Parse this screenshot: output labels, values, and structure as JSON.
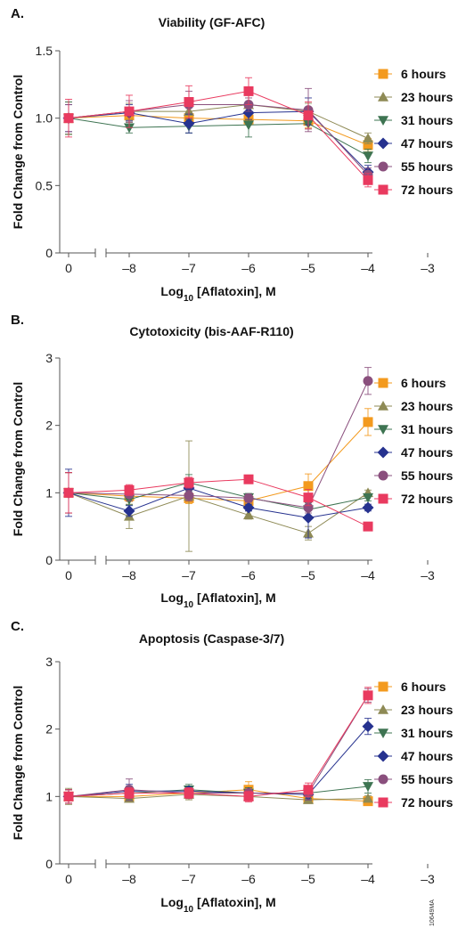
{
  "footnote": "10649MA",
  "colors": {
    "6 hours": "#f39a1e",
    "23 hours": "#8e8a55",
    "31 hours": "#3e7452",
    "47 hours": "#26328f",
    "55 hours": "#8a4f7d",
    "72 hours": "#e93a5f",
    "axis": "#555555",
    "errorbar": "#888888"
  },
  "markers": {
    "6 hours": "square",
    "23 hours": "triangle-up",
    "31 hours": "triangle-down",
    "47 hours": "diamond",
    "55 hours": "circle",
    "72 hours": "square"
  },
  "chart_data": [
    {
      "type": "line",
      "panel": "A.",
      "title": "Viability (GF-AFC)",
      "xlabel_main": "Log",
      "xlabel_sub": "10",
      "xlabel_rest": " [Aflatoxin], M",
      "ylabel": "Fold Change from Control",
      "ylim": [
        0,
        1.5
      ],
      "yticks": [
        0,
        0.5,
        1.0,
        1.5
      ],
      "ytick_labels": [
        "0",
        "0.5",
        "1.0",
        "1.5"
      ],
      "xticks": [
        0,
        -8,
        -7,
        -6,
        -5,
        -4,
        -3
      ],
      "xtick_labels": [
        "0",
        "–8",
        "–7",
        "–6",
        "–5",
        "–4",
        "–3"
      ],
      "legend_position": "right",
      "x": [
        0,
        -8,
        -7,
        -6,
        -5,
        -4
      ],
      "series": [
        {
          "name": "6 hours",
          "values": [
            1.0,
            1.02,
            1.0,
            0.99,
            0.98,
            0.8
          ],
          "errors": [
            0.12,
            0.05,
            0.05,
            0.04,
            0.05,
            0.05
          ]
        },
        {
          "name": "23 hours",
          "values": [
            1.0,
            1.05,
            1.05,
            1.1,
            1.05,
            0.85
          ],
          "errors": [
            0.12,
            0.06,
            0.06,
            0.07,
            0.06,
            0.04
          ]
        },
        {
          "name": "31 hours",
          "values": [
            1.0,
            0.93,
            0.94,
            0.95,
            0.96,
            0.72
          ],
          "errors": [
            0.12,
            0.04,
            0.05,
            0.09,
            0.04,
            0.05
          ]
        },
        {
          "name": "47 hours",
          "values": [
            1.0,
            1.04,
            0.96,
            1.04,
            1.05,
            0.6
          ],
          "errors": [
            0.1,
            0.06,
            0.07,
            0.05,
            0.1,
            0.05
          ]
        },
        {
          "name": "55 hours",
          "values": [
            1.0,
            1.05,
            1.1,
            1.1,
            1.06,
            0.58
          ],
          "errors": [
            0.1,
            0.08,
            0.1,
            0.05,
            0.16,
            0.05
          ]
        },
        {
          "name": "72 hours",
          "values": [
            1.0,
            1.05,
            1.12,
            1.2,
            1.02,
            0.54
          ],
          "errors": [
            0.14,
            0.12,
            0.12,
            0.1,
            0.1,
            0.05
          ]
        }
      ]
    },
    {
      "type": "line",
      "panel": "B.",
      "title": "Cytotoxicity (bis-AAF-R110)",
      "xlabel_main": "Log",
      "xlabel_sub": "10",
      "xlabel_rest": " [Aflatoxin], M",
      "ylabel": "Fold Change from Control",
      "ylim": [
        0,
        3
      ],
      "yticks": [
        0,
        1,
        2,
        3
      ],
      "ytick_labels": [
        "0",
        "1",
        "2",
        "3"
      ],
      "xticks": [
        0,
        -8,
        -7,
        -6,
        -5,
        -4,
        -3
      ],
      "xtick_labels": [
        "0",
        "–8",
        "–7",
        "–6",
        "–5",
        "–4",
        "–3"
      ],
      "legend_position": "right",
      "x": [
        0,
        -8,
        -7,
        -6,
        -5,
        -4
      ],
      "series": [
        {
          "name": "6 hours",
          "values": [
            1.0,
            0.95,
            0.92,
            0.88,
            1.1,
            2.05
          ],
          "errors": [
            0.3,
            0.08,
            0.08,
            0.06,
            0.18,
            0.2
          ]
        },
        {
          "name": "23 hours",
          "values": [
            1.0,
            0.65,
            0.95,
            0.67,
            0.4,
            1.0
          ],
          "errors": [
            0.3,
            0.18,
            0.82,
            0.06,
            0.1,
            0.04
          ]
        },
        {
          "name": "31 hours",
          "values": [
            1.0,
            0.9,
            1.15,
            0.93,
            0.75,
            0.93
          ],
          "errors": [
            0.3,
            0.08,
            0.12,
            0.06,
            0.1,
            0.05
          ]
        },
        {
          "name": "47 hours",
          "values": [
            1.0,
            0.73,
            1.07,
            0.78,
            0.63,
            0.78
          ],
          "errors": [
            0.35,
            0.08,
            0.1,
            0.05,
            0.3,
            0.05
          ]
        },
        {
          "name": "55 hours",
          "values": [
            1.0,
            0.98,
            0.96,
            0.92,
            0.78,
            2.66
          ],
          "errors": [
            0.3,
            0.1,
            0.08,
            0.06,
            0.08,
            0.2
          ]
        },
        {
          "name": "72 hours",
          "values": [
            1.0,
            1.04,
            1.15,
            1.2,
            0.93,
            0.5
          ],
          "errors": [
            0.3,
            0.08,
            0.08,
            0.05,
            0.12,
            0.04
          ]
        }
      ]
    },
    {
      "type": "line",
      "panel": "C.",
      "title": "Apoptosis (Caspase-3/7)",
      "xlabel_main": "Log",
      "xlabel_sub": "10",
      "xlabel_rest": " [Aflatoxin], M",
      "ylabel": "Fold Change from Control",
      "ylim": [
        0,
        3
      ],
      "yticks": [
        0,
        1,
        2,
        3
      ],
      "ytick_labels": [
        "0",
        "1",
        "2",
        "3"
      ],
      "xticks": [
        0,
        -8,
        -7,
        -6,
        -5,
        -4,
        -3
      ],
      "xtick_labels": [
        "0",
        "–8",
        "–7",
        "–6",
        "–5",
        "–4",
        "–3"
      ],
      "legend_position": "right",
      "x": [
        0,
        -8,
        -7,
        -6,
        -5,
        -4
      ],
      "series": [
        {
          "name": "6 hours",
          "values": [
            1.0,
            1.0,
            1.05,
            1.1,
            0.97,
            0.93
          ],
          "errors": [
            0.1,
            0.06,
            0.08,
            0.12,
            0.05,
            0.05
          ]
        },
        {
          "name": "23 hours",
          "values": [
            1.0,
            0.97,
            1.03,
            1.0,
            0.95,
            0.97
          ],
          "errors": [
            0.12,
            0.05,
            0.08,
            0.05,
            0.05,
            0.04
          ]
        },
        {
          "name": "31 hours",
          "values": [
            1.0,
            1.05,
            1.1,
            1.05,
            1.05,
            1.15
          ],
          "errors": [
            0.1,
            0.1,
            0.08,
            0.08,
            0.08,
            0.1
          ]
        },
        {
          "name": "47 hours",
          "values": [
            1.0,
            1.08,
            1.08,
            1.05,
            1.03,
            2.04
          ],
          "errors": [
            0.1,
            0.1,
            0.06,
            0.06,
            0.08,
            0.12
          ]
        },
        {
          "name": "55 hours",
          "values": [
            1.0,
            1.1,
            1.05,
            1.05,
            1.05,
            2.5
          ],
          "errors": [
            0.1,
            0.16,
            0.08,
            0.06,
            0.1,
            0.1
          ]
        },
        {
          "name": "72 hours",
          "values": [
            1.0,
            1.05,
            1.05,
            1.0,
            1.1,
            2.5
          ],
          "errors": [
            0.1,
            0.08,
            0.08,
            0.08,
            0.1,
            0.12
          ]
        }
      ]
    }
  ]
}
